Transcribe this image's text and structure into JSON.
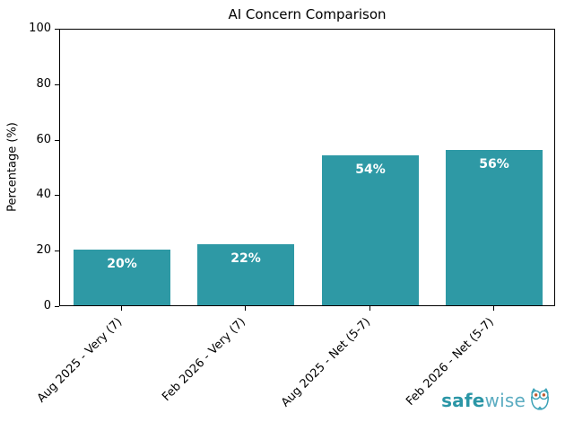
{
  "chart_data": {
    "type": "bar",
    "title": "AI Concern Comparison",
    "xlabel": "",
    "ylabel": "Percentage (%)",
    "categories": [
      "Aug 2025 - Very (7)",
      "Feb 2026 - Very (7)",
      "Aug 2025 - Net (5-7)",
      "Feb 2026 - Net (5-7)"
    ],
    "values": [
      20,
      22,
      54,
      56
    ],
    "bar_labels": [
      "20%",
      "22%",
      "54%",
      "56%"
    ],
    "ylim": [
      0,
      100
    ],
    "yticks": [
      0,
      20,
      40,
      60,
      80,
      100
    ],
    "bar_color": "#2E99A5",
    "bar_label_color": "#ffffff",
    "grid": false,
    "legend": null,
    "bar_width_fraction": 0.78,
    "x_tick_rotation_deg": 45
  },
  "branding": {
    "logo_bold": "safe",
    "logo_light": "wise",
    "owl_icon": "owl-icon",
    "color_bold": "#2B96A6",
    "color_light": "#5BACC1",
    "owl_stroke": "#3AA1B6",
    "owl_eye": "#C25C33"
  }
}
